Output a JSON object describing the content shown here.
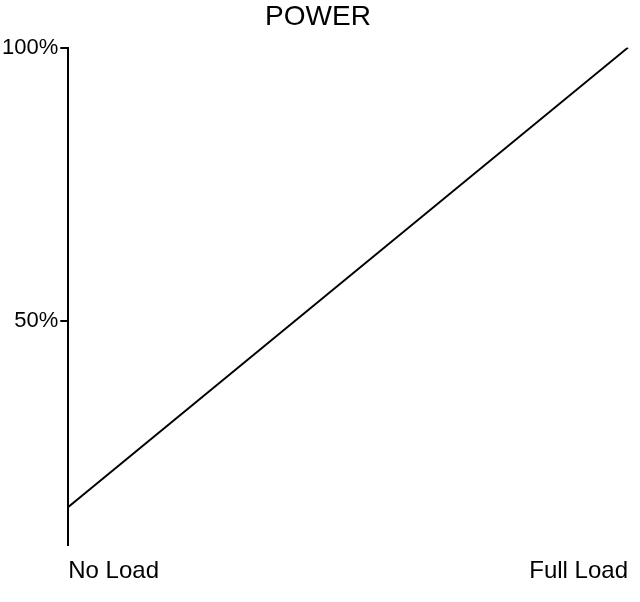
{
  "chart_data": {
    "type": "line",
    "title": "POWER",
    "categories": [
      "No Load",
      "Full Load"
    ],
    "values": [
      16,
      100
    ],
    "color": "#000000",
    "marker": "none",
    "ylim": [
      9,
      100
    ],
    "yticks": [
      {
        "value": 50,
        "label": "50%"
      },
      {
        "value": 100,
        "label": "100%"
      }
    ],
    "grid": false
  }
}
